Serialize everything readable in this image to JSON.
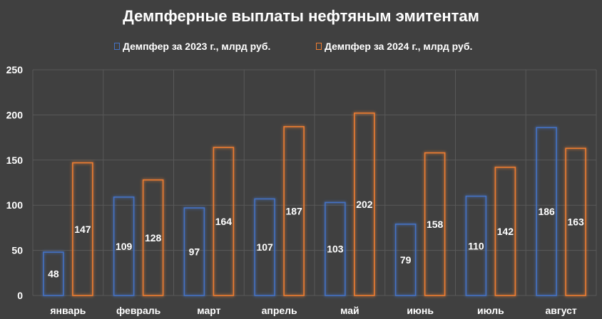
{
  "chart_data": {
    "type": "bar",
    "title": "Демпферные выплаты нефтяным эмитентам",
    "categories": [
      "январь",
      "февраль",
      "март",
      "апрель",
      "май",
      "июнь",
      "июль",
      "август"
    ],
    "series": [
      {
        "name": "Демпфер за 2023 г., млрд руб.",
        "color": "#4472c4",
        "values": [
          48,
          109,
          97,
          107,
          103,
          79,
          110,
          186
        ]
      },
      {
        "name": "Демпфер за 2024 г., млрд руб.",
        "color": "#ed7d31",
        "values": [
          147,
          128,
          164,
          187,
          202,
          158,
          142,
          163
        ]
      }
    ],
    "ylim": [
      0,
      250
    ],
    "yticks": [
      0,
      50,
      100,
      150,
      200,
      250
    ],
    "grid": true,
    "legend": "top"
  }
}
